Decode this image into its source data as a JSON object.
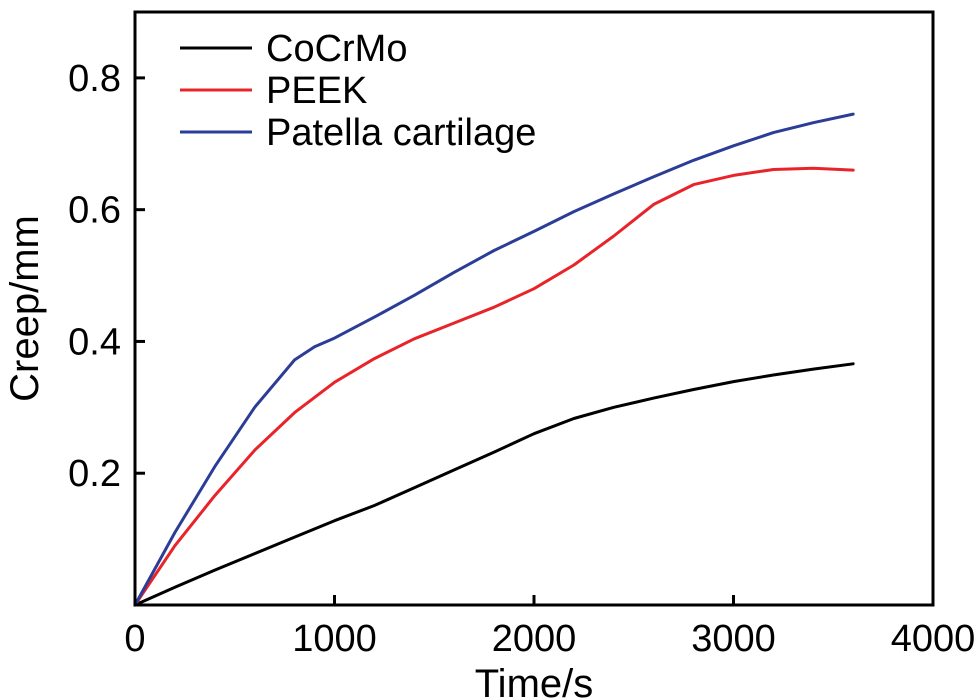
{
  "chart_data": {
    "type": "line",
    "title": "",
    "xlabel": "Time/s",
    "ylabel": "Creep/mm",
    "xlim": [
      0,
      4000
    ],
    "ylim": [
      0,
      0.9
    ],
    "xticks": [
      0,
      1000,
      2000,
      3000,
      4000
    ],
    "xtick_labels": [
      "0",
      "1000",
      "2000",
      "3000",
      "4000"
    ],
    "yticks": [
      0.2,
      0.4,
      0.6,
      0.8
    ],
    "ytick_labels": [
      "0.2",
      "0.4",
      "0.6",
      "0.8"
    ],
    "grid": false,
    "legend_position": "top-left",
    "series": [
      {
        "name": "CoCrMo",
        "color": "#000000",
        "x": [
          0,
          200,
          400,
          600,
          800,
          1000,
          1200,
          1400,
          1600,
          1800,
          2000,
          2200,
          2400,
          2600,
          2800,
          3000,
          3200,
          3400,
          3600
        ],
        "y": [
          0,
          0.027,
          0.053,
          0.078,
          0.103,
          0.128,
          0.151,
          0.178,
          0.205,
          0.232,
          0.26,
          0.283,
          0.3,
          0.314,
          0.327,
          0.339,
          0.349,
          0.358,
          0.366
        ]
      },
      {
        "name": "PEEK",
        "color": "#e8242a",
        "x": [
          0,
          200,
          400,
          600,
          800,
          1000,
          1200,
          1400,
          1600,
          1800,
          2000,
          2200,
          2400,
          2600,
          2800,
          3000,
          3200,
          3400,
          3600
        ],
        "y": [
          0,
          0.09,
          0.166,
          0.235,
          0.292,
          0.338,
          0.374,
          0.404,
          0.428,
          0.452,
          0.48,
          0.516,
          0.56,
          0.608,
          0.638,
          0.652,
          0.661,
          0.663,
          0.66
        ]
      },
      {
        "name": "Patella cartilage",
        "color": "#2b3d97",
        "x": [
          0,
          200,
          400,
          600,
          800,
          900,
          1000,
          1200,
          1400,
          1600,
          1800,
          2000,
          2200,
          2400,
          2600,
          2800,
          3000,
          3200,
          3400,
          3600
        ],
        "y": [
          0,
          0.11,
          0.21,
          0.3,
          0.372,
          0.392,
          0.405,
          0.437,
          0.47,
          0.505,
          0.538,
          0.567,
          0.597,
          0.624,
          0.65,
          0.675,
          0.697,
          0.717,
          0.732,
          0.745
        ]
      }
    ]
  }
}
